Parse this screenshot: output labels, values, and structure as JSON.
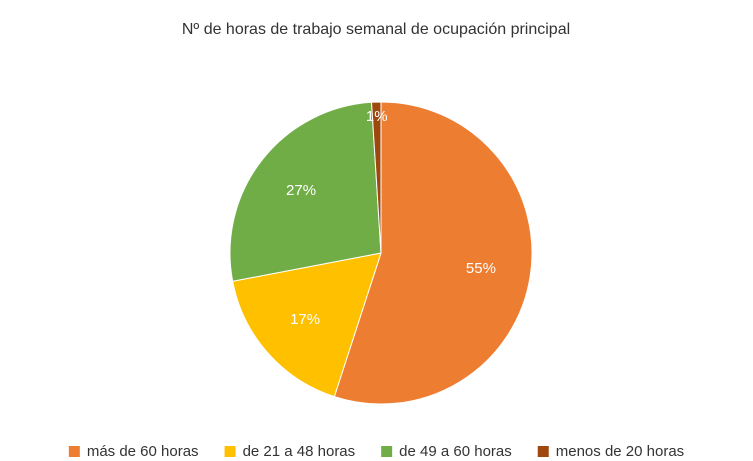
{
  "chart_data": {
    "type": "pie",
    "title": "Nº de horas de trabajo semanal de ocupación principal",
    "categories": [
      "más de 60 horas",
      "de 21 a 48 horas",
      "de 49 a 60 horas",
      "menos de 20 horas"
    ],
    "values": [
      55,
      17,
      27,
      1
    ],
    "value_labels": [
      "55%",
      "17%",
      "27%",
      "1%"
    ],
    "colors": [
      "#ED7D31",
      "#FFC000",
      "#70AD47",
      "#9E480E"
    ],
    "legend": "bottom"
  }
}
